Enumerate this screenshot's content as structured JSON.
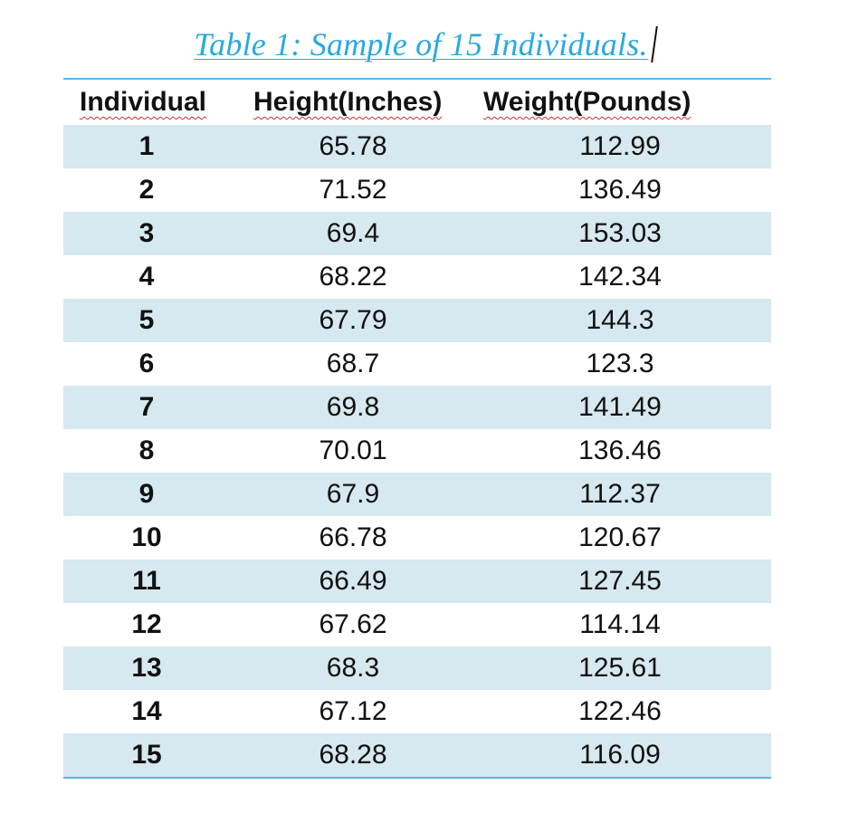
{
  "caption": {
    "text": "Table 1: Sample of 15 Individuals.",
    "color": "#29a9e0"
  },
  "table": {
    "headers": [
      "Individual",
      "Height(Inches)",
      "Weight(Pounds)"
    ],
    "rows": [
      {
        "individual": "1",
        "height": "65.78",
        "weight": "112.99"
      },
      {
        "individual": "2",
        "height": "71.52",
        "weight": "136.49"
      },
      {
        "individual": "3",
        "height": "69.4",
        "weight": "153.03"
      },
      {
        "individual": "4",
        "height": "68.22",
        "weight": "142.34"
      },
      {
        "individual": "5",
        "height": "67.79",
        "weight": "144.3"
      },
      {
        "individual": "6",
        "height": "68.7",
        "weight": "123.3"
      },
      {
        "individual": "7",
        "height": "69.8",
        "weight": "141.49"
      },
      {
        "individual": "8",
        "height": "70.01",
        "weight": "136.46"
      },
      {
        "individual": "9",
        "height": "67.9",
        "weight": "112.37"
      },
      {
        "individual": "10",
        "height": "66.78",
        "weight": "120.67"
      },
      {
        "individual": "11",
        "height": "66.49",
        "weight": "127.45"
      },
      {
        "individual": "12",
        "height": "67.62",
        "weight": "114.14"
      },
      {
        "individual": "13",
        "height": "68.3",
        "weight": "125.61"
      },
      {
        "individual": "14",
        "height": "67.12",
        "weight": "122.46"
      },
      {
        "individual": "15",
        "height": "68.28",
        "weight": "116.09"
      }
    ],
    "stripe_color": "#d6e8f0",
    "rule_color": "#5ab5df"
  }
}
